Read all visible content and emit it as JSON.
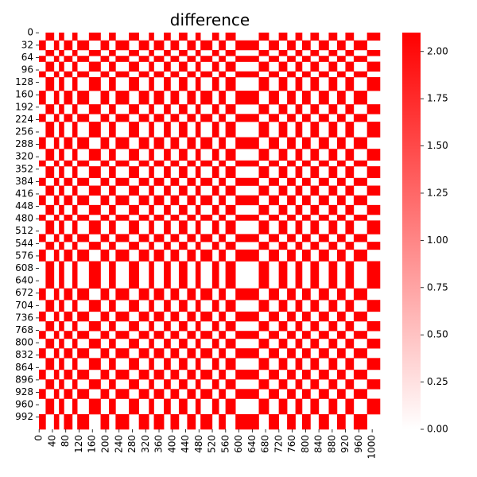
{
  "chart_data": {
    "type": "heatmap",
    "title": "difference",
    "xlabel": "",
    "ylabel": "",
    "size": 1024,
    "x_tick_labels": [
      "0",
      "40",
      "80",
      "120",
      "160",
      "200",
      "240",
      "280",
      "320",
      "360",
      "400",
      "440",
      "480",
      "520",
      "560",
      "600",
      "640",
      "680",
      "720",
      "760",
      "800",
      "840",
      "880",
      "920",
      "960",
      "1000"
    ],
    "y_tick_labels": [
      "0",
      "32",
      "64",
      "96",
      "128",
      "160",
      "192",
      "224",
      "256",
      "288",
      "320",
      "352",
      "384",
      "416",
      "448",
      "480",
      "512",
      "544",
      "576",
      "608",
      "640",
      "672",
      "704",
      "736",
      "768",
      "800",
      "832",
      "864",
      "896",
      "928",
      "960",
      "992"
    ],
    "colorbar": {
      "range": [
        0,
        2.1
      ],
      "tick_labels": [
        "0.00",
        "0.25",
        "0.50",
        "0.75",
        "1.00",
        "1.25",
        "1.50",
        "1.75",
        "2.00"
      ],
      "colors": [
        "#ffffff",
        "#ff0000"
      ]
    },
    "value_max": 2.1,
    "blocks": [
      {
        "start": 0,
        "end": 20,
        "active": 0
      },
      {
        "start": 20,
        "end": 45,
        "active": 1
      },
      {
        "start": 45,
        "end": 60,
        "active": 0
      },
      {
        "start": 60,
        "end": 75,
        "active": 1
      },
      {
        "start": 75,
        "end": 100,
        "active": 0
      },
      {
        "start": 100,
        "end": 115,
        "active": 1
      },
      {
        "start": 115,
        "end": 150,
        "active": 0
      },
      {
        "start": 150,
        "end": 185,
        "active": 1
      },
      {
        "start": 185,
        "end": 210,
        "active": 0
      },
      {
        "start": 210,
        "end": 230,
        "active": 1
      },
      {
        "start": 230,
        "end": 270,
        "active": 0
      },
      {
        "start": 270,
        "end": 300,
        "active": 1
      },
      {
        "start": 300,
        "end": 330,
        "active": 0
      },
      {
        "start": 330,
        "end": 345,
        "active": 1
      },
      {
        "start": 345,
        "end": 375,
        "active": 0
      },
      {
        "start": 375,
        "end": 395,
        "active": 1
      },
      {
        "start": 395,
        "end": 420,
        "active": 0
      },
      {
        "start": 420,
        "end": 445,
        "active": 1
      },
      {
        "start": 445,
        "end": 470,
        "active": 0
      },
      {
        "start": 470,
        "end": 485,
        "active": 1
      },
      {
        "start": 485,
        "end": 520,
        "active": 0
      },
      {
        "start": 520,
        "end": 540,
        "active": 1
      },
      {
        "start": 540,
        "end": 560,
        "active": 0
      },
      {
        "start": 560,
        "end": 590,
        "active": 1
      },
      {
        "start": 590,
        "end": 660,
        "active": 0
      },
      {
        "start": 660,
        "end": 690,
        "active": 1
      },
      {
        "start": 690,
        "end": 720,
        "active": 0
      },
      {
        "start": 720,
        "end": 745,
        "active": 1
      },
      {
        "start": 745,
        "end": 770,
        "active": 0
      },
      {
        "start": 770,
        "end": 790,
        "active": 1
      },
      {
        "start": 790,
        "end": 815,
        "active": 0
      },
      {
        "start": 815,
        "end": 840,
        "active": 1
      },
      {
        "start": 840,
        "end": 870,
        "active": 0
      },
      {
        "start": 870,
        "end": 895,
        "active": 1
      },
      {
        "start": 895,
        "end": 920,
        "active": 0
      },
      {
        "start": 920,
        "end": 945,
        "active": 1
      },
      {
        "start": 945,
        "end": 985,
        "active": 0
      },
      {
        "start": 985,
        "end": 1024,
        "active": 1
      }
    ]
  }
}
